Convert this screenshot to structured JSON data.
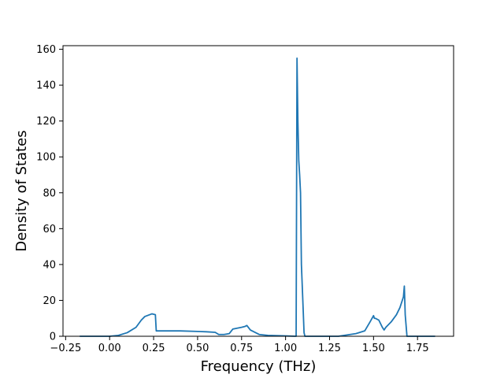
{
  "chart_data": {
    "type": "line",
    "title": "",
    "xlabel": "Frequency (THz)",
    "ylabel": "Density of States",
    "xlim": [
      -0.265,
      1.955
    ],
    "ylim": [
      0,
      162
    ],
    "xticks": [
      -0.25,
      0.0,
      0.25,
      0.5,
      0.75,
      1.0,
      1.25,
      1.5,
      1.75
    ],
    "xtick_labels": [
      "−0.25",
      "0.00",
      "0.25",
      "0.50",
      "0.75",
      "1.00",
      "1.25",
      "1.50",
      "1.75"
    ],
    "yticks": [
      0,
      20,
      40,
      60,
      80,
      100,
      120,
      140,
      160
    ],
    "ytick_labels": [
      "0",
      "20",
      "40",
      "60",
      "80",
      "100",
      "120",
      "140",
      "160"
    ],
    "grid": false,
    "legend": null,
    "series": [
      {
        "color": "#1f77b4",
        "x": [
          -0.17,
          0.0,
          0.05,
          0.1,
          0.15,
          0.18,
          0.2,
          0.24,
          0.26,
          0.265,
          0.27,
          0.3,
          0.4,
          0.5,
          0.55,
          0.6,
          0.62,
          0.65,
          0.68,
          0.7,
          0.75,
          0.77,
          0.78,
          0.8,
          0.85,
          0.9,
          1.0,
          1.06,
          1.065,
          1.07,
          1.075,
          1.08,
          1.085,
          1.09,
          1.1,
          1.105,
          1.11,
          1.2,
          1.3,
          1.4,
          1.45,
          1.48,
          1.5,
          1.505,
          1.51,
          1.53,
          1.55,
          1.56,
          1.57,
          1.6,
          1.63,
          1.65,
          1.67,
          1.675,
          1.68,
          1.69,
          1.7,
          1.85
        ],
        "y": [
          0,
          0,
          0.5,
          2,
          5,
          9,
          11,
          12.5,
          12,
          3,
          3,
          3,
          3,
          2.7,
          2.5,
          2.2,
          1,
          1,
          1.5,
          4,
          5,
          5.5,
          6,
          3.5,
          1,
          0.5,
          0.2,
          0,
          155,
          120,
          98,
          90,
          80,
          40,
          15,
          2,
          0,
          0,
          0,
          1.5,
          3,
          8,
          11.5,
          10,
          10,
          9,
          5,
          3.5,
          5,
          8,
          12,
          16,
          22,
          28,
          12,
          0,
          0,
          0
        ]
      }
    ]
  }
}
